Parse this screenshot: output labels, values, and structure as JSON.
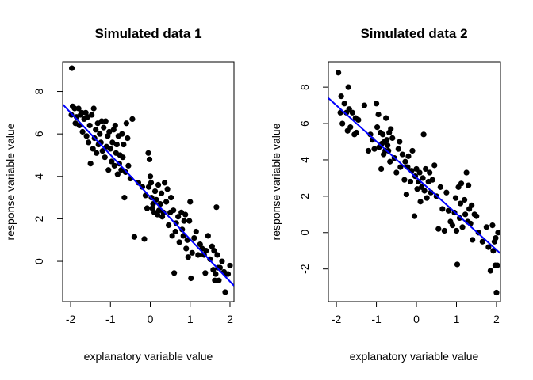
{
  "chart_data": [
    {
      "type": "scatter",
      "title": "Simulated data 1",
      "xlabel": "explanatory variable value",
      "ylabel": "response variable value",
      "xlim": [
        -2.2,
        2.1
      ],
      "ylim": [
        -1.9,
        9.4
      ],
      "xticks": [
        "-2",
        "-1",
        "0",
        "1",
        "2"
      ],
      "yticks": [
        "0",
        "2",
        "4",
        "6",
        "8"
      ],
      "fit_line": {
        "x": [
          -2.2,
          2.1
        ],
        "y": [
          7.4,
          -1.15
        ],
        "color": "#0000ff"
      },
      "series": [
        {
          "color": "#000000",
          "points": [
            [
              -1.97,
              9.1
            ],
            [
              -1.98,
              6.9
            ],
            [
              -1.95,
              7.3
            ],
            [
              -1.9,
              7.2
            ],
            [
              -1.88,
              6.5
            ],
            [
              -1.85,
              6.8
            ],
            [
              -1.8,
              7.2
            ],
            [
              -1.78,
              6.4
            ],
            [
              -1.75,
              6.9
            ],
            [
              -1.72,
              7.0
            ],
            [
              -1.7,
              6.1
            ],
            [
              -1.66,
              6.7
            ],
            [
              -1.62,
              7.0
            ],
            [
              -1.6,
              5.9
            ],
            [
              -1.57,
              6.8
            ],
            [
              -1.55,
              5.6
            ],
            [
              -1.52,
              6.4
            ],
            [
              -1.5,
              4.6
            ],
            [
              -1.47,
              6.9
            ],
            [
              -1.44,
              5.3
            ],
            [
              -1.42,
              7.2
            ],
            [
              -1.4,
              5.8
            ],
            [
              -1.37,
              6.2
            ],
            [
              -1.35,
              5.1
            ],
            [
              -1.32,
              6.5
            ],
            [
              -1.3,
              5.5
            ],
            [
              -1.27,
              6.0
            ],
            [
              -1.24,
              5.6
            ],
            [
              -1.22,
              6.6
            ],
            [
              -1.2,
              5.2
            ],
            [
              -1.17,
              6.3
            ],
            [
              -1.14,
              4.9
            ],
            [
              -1.12,
              6.6
            ],
            [
              -1.1,
              5.4
            ],
            [
              -1.07,
              5.9
            ],
            [
              -1.05,
              4.3
            ],
            [
              -1.03,
              6.1
            ],
            [
              -1.0,
              5.3
            ],
            [
              -0.97,
              4.7
            ],
            [
              -0.95,
              5.6
            ],
            [
              -0.92,
              6.2
            ],
            [
              -0.9,
              4.5
            ],
            [
              -0.88,
              6.4
            ],
            [
              -0.86,
              5.1
            ],
            [
              -0.84,
              5.5
            ],
            [
              -0.82,
              4.1
            ],
            [
              -0.8,
              5.9
            ],
            [
              -0.78,
              4.6
            ],
            [
              -0.76,
              5.0
            ],
            [
              -0.73,
              4.3
            ],
            [
              -0.71,
              6.0
            ],
            [
              -0.69,
              4.9
            ],
            [
              -0.67,
              5.5
            ],
            [
              -0.65,
              3.0
            ],
            [
              -0.62,
              4.2
            ],
            [
              -0.6,
              6.5
            ],
            [
              -0.57,
              5.8
            ],
            [
              -0.55,
              4.5
            ],
            [
              -0.5,
              3.9
            ],
            [
              -0.45,
              6.7
            ],
            [
              -0.4,
              1.15
            ],
            [
              -0.3,
              3.7
            ],
            [
              -0.2,
              3.5
            ],
            [
              -0.15,
              1.05
            ],
            [
              -0.12,
              3.1
            ],
            [
              -0.08,
              2.5
            ],
            [
              -0.05,
              5.1
            ],
            [
              -0.04,
              3.5
            ],
            [
              -0.02,
              4.8
            ],
            [
              0.0,
              4.0
            ],
            [
              0.02,
              3.7
            ],
            [
              0.03,
              3.0
            ],
            [
              0.05,
              2.5
            ],
            [
              0.07,
              2.7
            ],
            [
              0.1,
              2.3
            ],
            [
              0.12,
              3.3
            ],
            [
              0.15,
              2.9
            ],
            [
              0.18,
              2.2
            ],
            [
              0.2,
              3.6
            ],
            [
              0.22,
              2.4
            ],
            [
              0.25,
              2.7
            ],
            [
              0.28,
              3.2
            ],
            [
              0.3,
              2.1
            ],
            [
              0.33,
              2.3
            ],
            [
              0.36,
              3.7
            ],
            [
              0.4,
              2.8
            ],
            [
              0.43,
              3.4
            ],
            [
              0.46,
              1.7
            ],
            [
              0.5,
              2.3
            ],
            [
              0.52,
              3.0
            ],
            [
              0.55,
              1.2
            ],
            [
              0.58,
              2.4
            ],
            [
              0.6,
              -0.55
            ],
            [
              0.63,
              1.4
            ],
            [
              0.65,
              1.8
            ],
            [
              0.7,
              2.1
            ],
            [
              0.73,
              0.9
            ],
            [
              0.78,
              2.3
            ],
            [
              0.8,
              1.5
            ],
            [
              0.83,
              1.2
            ],
            [
              0.85,
              1.9
            ],
            [
              0.88,
              2.2
            ],
            [
              0.9,
              0.6
            ],
            [
              0.93,
              1.0
            ],
            [
              0.95,
              0.2
            ],
            [
              0.98,
              1.9
            ],
            [
              1.0,
              2.8
            ],
            [
              1.02,
              -0.8
            ],
            [
              1.05,
              0.4
            ],
            [
              1.1,
              1.1
            ],
            [
              1.15,
              1.4
            ],
            [
              1.2,
              0.3
            ],
            [
              1.25,
              0.8
            ],
            [
              1.3,
              0.6
            ],
            [
              1.35,
              0.3
            ],
            [
              1.38,
              -0.55
            ],
            [
              1.4,
              0.5
            ],
            [
              1.45,
              1.2
            ],
            [
              1.5,
              0.1
            ],
            [
              1.55,
              0.7
            ],
            [
              1.58,
              -0.4
            ],
            [
              1.6,
              0.5
            ],
            [
              1.62,
              -0.9
            ],
            [
              1.64,
              -0.6
            ],
            [
              1.66,
              2.55
            ],
            [
              1.68,
              0.3
            ],
            [
              1.7,
              -0.3
            ],
            [
              1.72,
              -0.9
            ],
            [
              1.75,
              -0.3
            ],
            [
              1.8,
              0.0
            ],
            [
              1.85,
              -0.5
            ],
            [
              1.88,
              -1.45
            ],
            [
              1.9,
              -0.6
            ],
            [
              1.95,
              -0.6
            ],
            [
              2.0,
              -0.2
            ]
          ]
        }
      ]
    },
    {
      "type": "scatter",
      "title": "Simulated data 2",
      "xlabel": "explanatory variable value",
      "ylabel": "response variable value",
      "xlim": [
        -2.2,
        2.1
      ],
      "ylim": [
        -3.8,
        9.4
      ],
      "xticks": [
        "-2",
        "-1",
        "0",
        "1",
        "2"
      ],
      "yticks": [
        "-2",
        "0",
        "2",
        "4",
        "6",
        "8"
      ],
      "fit_line": {
        "x": [
          -2.2,
          2.1
        ],
        "y": [
          7.4,
          -1.15
        ],
        "color": "#0000ff"
      },
      "series": [
        {
          "color": "#000000",
          "points": [
            [
              -1.95,
              8.8
            ],
            [
              -1.9,
              6.6
            ],
            [
              -1.88,
              7.5
            ],
            [
              -1.85,
              6.0
            ],
            [
              -1.8,
              7.1
            ],
            [
              -1.75,
              6.6
            ],
            [
              -1.72,
              5.6
            ],
            [
              -1.7,
              8.0
            ],
            [
              -1.68,
              6.8
            ],
            [
              -1.65,
              5.8
            ],
            [
              -1.6,
              6.6
            ],
            [
              -1.55,
              5.4
            ],
            [
              -1.52,
              6.3
            ],
            [
              -1.5,
              5.5
            ],
            [
              -1.45,
              6.2
            ],
            [
              -1.3,
              7.0
            ],
            [
              -1.2,
              4.5
            ],
            [
              -1.15,
              5.4
            ],
            [
              -1.1,
              5.1
            ],
            [
              -1.05,
              4.6
            ],
            [
              -1.0,
              7.1
            ],
            [
              -0.98,
              5.8
            ],
            [
              -0.95,
              6.5
            ],
            [
              -0.93,
              4.7
            ],
            [
              -0.9,
              5.5
            ],
            [
              -0.88,
              3.5
            ],
            [
              -0.86,
              4.9
            ],
            [
              -0.84,
              5.4
            ],
            [
              -0.82,
              4.3
            ],
            [
              -0.8,
              5.0
            ],
            [
              -0.78,
              4.5
            ],
            [
              -0.76,
              6.3
            ],
            [
              -0.74,
              5.1
            ],
            [
              -0.72,
              4.8
            ],
            [
              -0.7,
              4.5
            ],
            [
              -0.68,
              5.5
            ],
            [
              -0.66,
              3.9
            ],
            [
              -0.64,
              5.7
            ],
            [
              -0.6,
              5.2
            ],
            [
              -0.55,
              4.1
            ],
            [
              -0.5,
              3.3
            ],
            [
              -0.45,
              4.6
            ],
            [
              -0.42,
              5.0
            ],
            [
              -0.4,
              3.6
            ],
            [
              -0.35,
              4.3
            ],
            [
              -0.3,
              2.9
            ],
            [
              -0.28,
              3.9
            ],
            [
              -0.25,
              2.1
            ],
            [
              -0.22,
              3.6
            ],
            [
              -0.2,
              4.2
            ],
            [
              -0.15,
              2.8
            ],
            [
              -0.12,
              3.4
            ],
            [
              -0.1,
              4.5
            ],
            [
              -0.05,
              0.9
            ],
            [
              -0.03,
              3.1
            ],
            [
              0.0,
              3.5
            ],
            [
              0.02,
              2.4
            ],
            [
              0.05,
              2.8
            ],
            [
              0.08,
              3.3
            ],
            [
              0.1,
              1.7
            ],
            [
              0.13,
              2.5
            ],
            [
              0.16,
              3.0
            ],
            [
              0.18,
              5.4
            ],
            [
              0.2,
              2.3
            ],
            [
              0.23,
              3.5
            ],
            [
              0.26,
              1.9
            ],
            [
              0.3,
              2.8
            ],
            [
              0.33,
              3.3
            ],
            [
              0.36,
              2.2
            ],
            [
              0.4,
              2.9
            ],
            [
              0.45,
              3.7
            ],
            [
              0.5,
              2.0
            ],
            [
              0.55,
              0.2
            ],
            [
              0.6,
              2.5
            ],
            [
              0.65,
              1.3
            ],
            [
              0.7,
              0.1
            ],
            [
              0.75,
              2.2
            ],
            [
              0.8,
              1.2
            ],
            [
              0.85,
              0.6
            ],
            [
              0.9,
              0.4
            ],
            [
              0.95,
              1.1
            ],
            [
              0.98,
              1.9
            ],
            [
              1.0,
              0.1
            ],
            [
              1.02,
              -1.75
            ],
            [
              1.05,
              2.5
            ],
            [
              1.08,
              0.8
            ],
            [
              1.1,
              1.6
            ],
            [
              1.12,
              2.7
            ],
            [
              1.15,
              0.3
            ],
            [
              1.2,
              1.8
            ],
            [
              1.22,
              1.0
            ],
            [
              1.25,
              3.3
            ],
            [
              1.28,
              0.6
            ],
            [
              1.3,
              2.6
            ],
            [
              1.32,
              1.3
            ],
            [
              1.35,
              0.5
            ],
            [
              1.38,
              1.5
            ],
            [
              1.4,
              -0.4
            ],
            [
              1.45,
              1.0
            ],
            [
              1.5,
              0.9
            ],
            [
              1.55,
              0.0
            ],
            [
              1.65,
              -0.5
            ],
            [
              1.75,
              0.3
            ],
            [
              1.8,
              -0.8
            ],
            [
              1.85,
              -2.1
            ],
            [
              1.9,
              0.4
            ],
            [
              1.92,
              -1.0
            ],
            [
              1.95,
              -0.5
            ],
            [
              1.97,
              -1.8
            ],
            [
              1.98,
              -0.3
            ],
            [
              2.0,
              -3.3
            ],
            [
              2.02,
              -1.8
            ],
            [
              2.04,
              0.0
            ]
          ]
        }
      ]
    }
  ]
}
